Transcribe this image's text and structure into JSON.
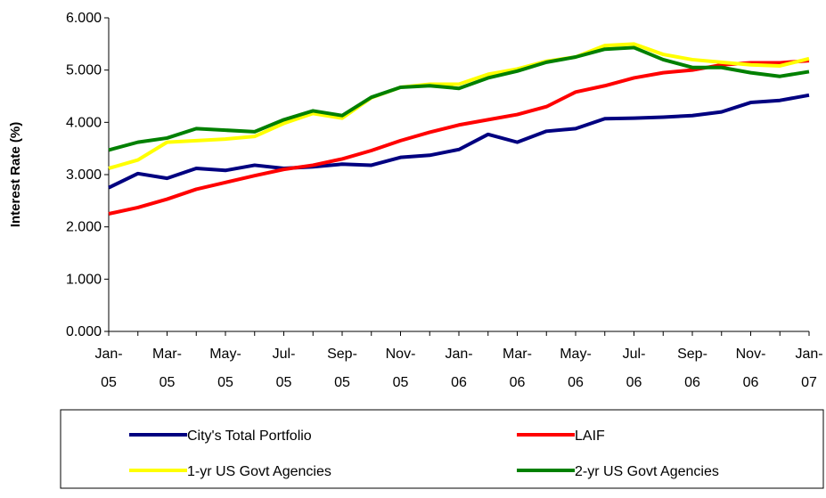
{
  "chart_data": {
    "type": "line",
    "y_label": "Interest Rate (%)",
    "categories": [
      "Jan-05",
      null,
      "Mar-05",
      null,
      "May-05",
      null,
      "Jul-05",
      null,
      "Sep-05",
      null,
      "Nov-05",
      null,
      "Jan-06",
      null,
      "Mar-06",
      null,
      "May-06",
      null,
      "Jul-06",
      null,
      "Sep-06",
      null,
      "Nov-06",
      null,
      "Jan-07"
    ],
    "ylim": [
      0,
      6
    ],
    "yticks": [
      {
        "value": 0,
        "label": "0.000"
      },
      {
        "value": 1,
        "label": "1.000"
      },
      {
        "value": 2,
        "label": "2.000"
      },
      {
        "value": 3,
        "label": "3.000"
      },
      {
        "value": 4,
        "label": "4.000"
      },
      {
        "value": 5,
        "label": "5.000"
      },
      {
        "value": 6,
        "label": "6.000"
      }
    ],
    "series": [
      {
        "name": "City's Total Portfolio",
        "color": "#000080",
        "values": [
          2.75,
          3.02,
          2.93,
          3.12,
          3.08,
          3.18,
          3.12,
          3.15,
          3.2,
          3.18,
          3.33,
          3.37,
          3.48,
          3.77,
          3.62,
          3.83,
          3.88,
          4.07,
          4.08,
          4.1,
          4.13,
          4.2,
          4.38,
          4.42,
          4.52
        ]
      },
      {
        "name": "LAIF",
        "color": "#ff0000",
        "values": [
          2.25,
          2.37,
          2.53,
          2.72,
          2.85,
          2.98,
          3.1,
          3.18,
          3.3,
          3.46,
          3.65,
          3.81,
          3.95,
          4.05,
          4.15,
          4.3,
          4.58,
          4.7,
          4.85,
          4.95,
          5.0,
          5.1,
          5.14,
          5.14,
          5.18
        ]
      },
      {
        "name": "1-yr US Govt Agencies",
        "color": "#ffff00",
        "values": [
          3.12,
          3.28,
          3.62,
          3.65,
          3.68,
          3.73,
          3.98,
          4.17,
          4.08,
          4.47,
          4.67,
          4.73,
          4.73,
          4.92,
          5.02,
          5.17,
          5.25,
          5.47,
          5.5,
          5.3,
          5.2,
          5.15,
          5.1,
          5.08,
          5.22
        ]
      },
      {
        "name": "2-yr US Govt Agencies",
        "color": "#008000",
        "values": [
          3.47,
          3.62,
          3.7,
          3.88,
          3.85,
          3.82,
          4.05,
          4.22,
          4.13,
          4.48,
          4.67,
          4.7,
          4.65,
          4.85,
          4.98,
          5.15,
          5.25,
          5.4,
          5.43,
          5.2,
          5.05,
          5.05,
          4.95,
          4.88,
          4.97
        ]
      }
    ]
  }
}
